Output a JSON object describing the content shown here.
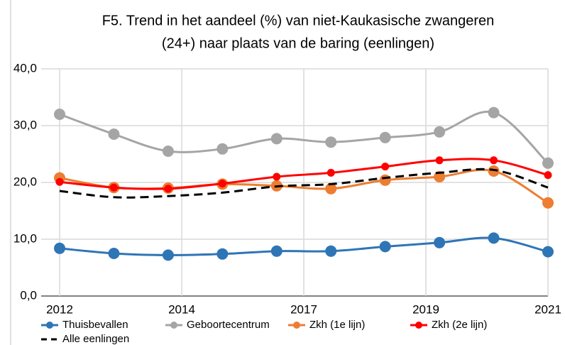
{
  "chart_data": {
    "type": "line",
    "title_lines": [
      "F5. Trend in het aandeel (%) van niet-Kaukasische zwangeren",
      "(24+) naar plaats van de baring (eenlingen)"
    ],
    "x": [
      2012,
      2013,
      2014,
      2015,
      2016,
      2017,
      2018,
      2019,
      2020,
      2021
    ],
    "xlim": [
      2012,
      2021
    ],
    "xticks": [
      2012,
      {
        "value": 2014.25,
        "label": "2014"
      },
      {
        "value": 2016.5,
        "label": "2017"
      },
      {
        "value": 2018.75,
        "label": "2019"
      },
      2021
    ],
    "ylim": [
      0,
      40
    ],
    "yticks": [
      {
        "value": 0,
        "label": "0,0"
      },
      {
        "value": 10,
        "label": "10,0"
      },
      {
        "value": 20,
        "label": "20,0"
      },
      {
        "value": 30,
        "label": "30,0"
      },
      {
        "value": 40,
        "label": "40,0"
      }
    ],
    "grid": true,
    "series": [
      {
        "name": "Thuisbevallen",
        "color": "#2e75b6",
        "marker": "large",
        "values": [
          8.4,
          7.5,
          7.2,
          7.4,
          7.9,
          7.9,
          8.7,
          9.4,
          10.2,
          7.8
        ]
      },
      {
        "name": "Geboortecentrum",
        "color": "#a5a5a5",
        "marker": "large",
        "values": [
          32.0,
          28.5,
          25.5,
          25.9,
          27.7,
          27.1,
          27.9,
          28.9,
          32.3,
          23.4
        ]
      },
      {
        "name": "Zkh (1e lijn)",
        "color": "#ed7d31",
        "marker": "large",
        "values": [
          20.8,
          19.1,
          19.0,
          19.7,
          19.4,
          18.9,
          20.4,
          21.0,
          22.0,
          16.4
        ]
      },
      {
        "name": "Zkh (2e lijn)",
        "color": "#ff0000",
        "marker": "small",
        "values": [
          20.1,
          19.1,
          18.9,
          19.8,
          21.0,
          21.7,
          22.8,
          23.9,
          23.9,
          21.3
        ]
      },
      {
        "name": "Alle eenlingen",
        "color": "#000000",
        "marker": "none",
        "dashed": true,
        "values": [
          18.5,
          17.4,
          17.6,
          18.2,
          19.3,
          19.7,
          20.8,
          21.7,
          22.2,
          19.1
        ]
      }
    ]
  }
}
